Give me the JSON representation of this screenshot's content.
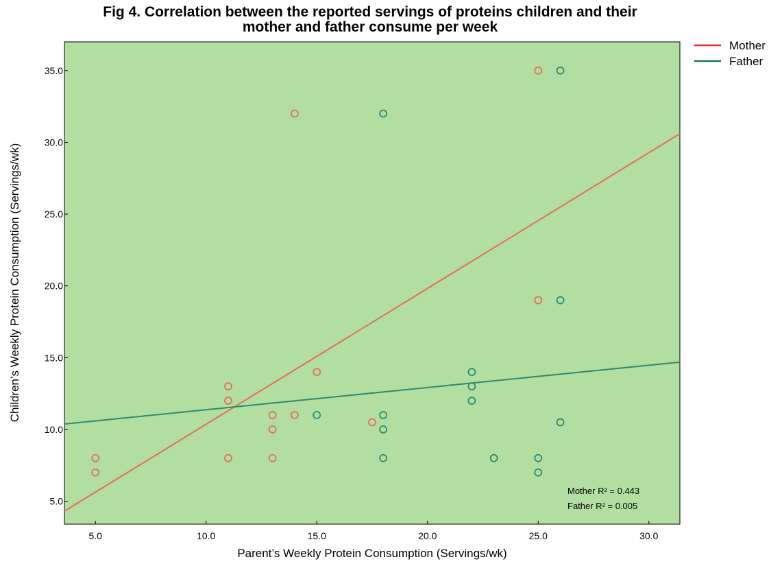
{
  "chart_data": {
    "type": "scatter",
    "title_line1": "Fig 4. Correlation between the reported servings of proteins children and their",
    "title_line2": "mother and father consume per week",
    "xlabel": "Parent’s Weekly Protein Consumption (Servings/wk)",
    "ylabel": "Children’s Weekly Protein Consumption (Servings/wk)",
    "xlim": [
      3.6,
      31.4
    ],
    "ylim": [
      3.4,
      37.0
    ],
    "xticks": [
      5,
      10,
      15,
      20,
      25,
      30
    ],
    "xtick_labels": [
      "5.0",
      "10.0",
      "15.0",
      "20.0",
      "25.0",
      "30.0"
    ],
    "yticks": [
      5,
      10,
      15,
      20,
      25,
      30,
      35
    ],
    "ytick_labels": [
      "5.0",
      "10.0",
      "15.0",
      "20.0",
      "25.0",
      "30.0",
      "35.0"
    ],
    "grid": false,
    "background": "#b2dfa1",
    "legend_position": "top-right outside",
    "series": [
      {
        "name": "Mother",
        "color": "#e1705a",
        "legend_color": "#e8292b",
        "points": [
          [
            5,
            8
          ],
          [
            5,
            7
          ],
          [
            11,
            13
          ],
          [
            11,
            12
          ],
          [
            11,
            8
          ],
          [
            13,
            11
          ],
          [
            13,
            10
          ],
          [
            13,
            8
          ],
          [
            14,
            32
          ],
          [
            14,
            11
          ],
          [
            15,
            14
          ],
          [
            17.5,
            10.5
          ],
          [
            25,
            35
          ],
          [
            25,
            19
          ]
        ],
        "fit": {
          "slope": 0.946,
          "intercept": 0.9
        }
      },
      {
        "name": "Father",
        "color": "#2f8a72",
        "legend_color": "#1c7060",
        "points": [
          [
            15,
            11
          ],
          [
            18,
            32
          ],
          [
            18,
            11
          ],
          [
            18,
            10
          ],
          [
            18,
            8
          ],
          [
            22,
            14
          ],
          [
            22,
            13
          ],
          [
            22,
            12
          ],
          [
            23,
            8
          ],
          [
            25,
            8
          ],
          [
            25,
            7
          ],
          [
            26,
            35
          ],
          [
            26,
            19
          ],
          [
            26,
            10.5
          ]
        ],
        "fit": {
          "slope": 0.155,
          "intercept": 9.82
        }
      }
    ],
    "annotations": [
      "Mother R² = 0.443",
      "Father R² = 0.005"
    ]
  }
}
